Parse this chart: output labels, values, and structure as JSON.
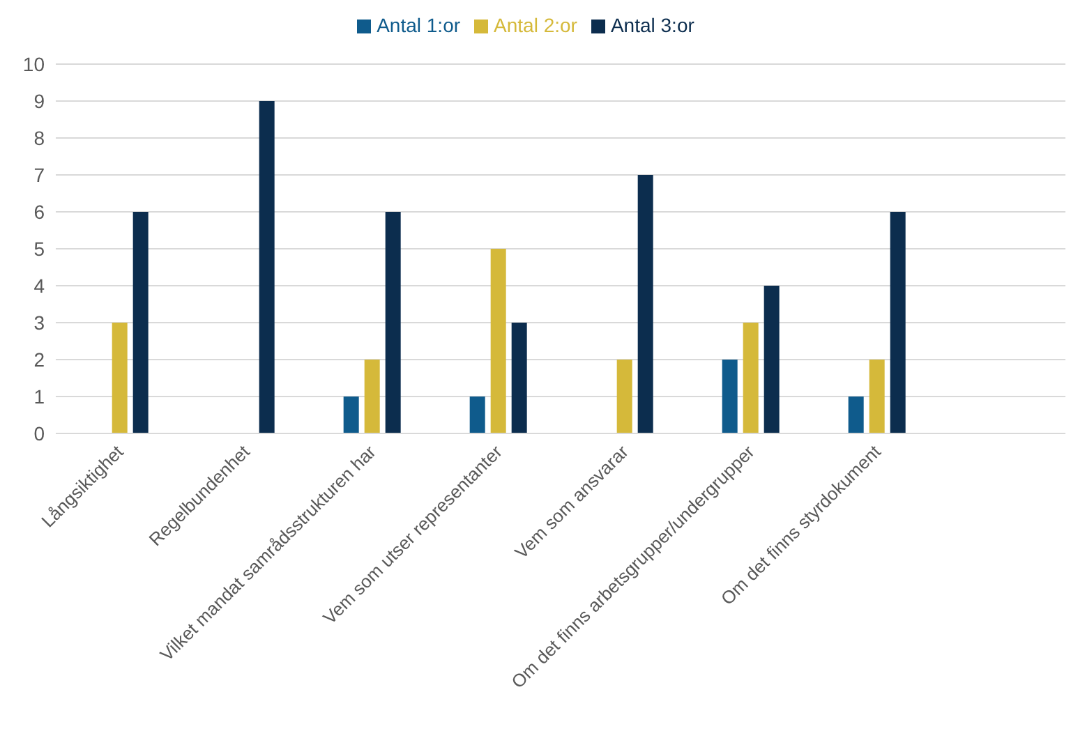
{
  "chart_data": {
    "type": "bar",
    "categories": [
      "Långsiktighet",
      "Regelbundenhet",
      "Vilket mandat samrådsstrukturen har",
      "Vem som utser representanter",
      "Vem som ansvarar",
      "Om det finns arbetsgrupper/undergrupper",
      "Om det finns styrdokument",
      null
    ],
    "series": [
      {
        "name": "Antal 1:or",
        "color": "#0f5b8c",
        "values": [
          0,
          0,
          1,
          1,
          0,
          2,
          1,
          null
        ]
      },
      {
        "name": "Antal 2:or",
        "color": "#d5b93a",
        "values": [
          3,
          0,
          2,
          5,
          2,
          3,
          2,
          null
        ]
      },
      {
        "name": "Antal 3:or",
        "color": "#0c2d4e",
        "values": [
          6,
          9,
          6,
          3,
          7,
          4,
          6,
          null
        ]
      }
    ],
    "ylim": [
      0,
      10
    ],
    "yticks": [
      0,
      1,
      2,
      3,
      4,
      5,
      6,
      7,
      8,
      9,
      10
    ],
    "grid": "y",
    "legend": "top"
  }
}
